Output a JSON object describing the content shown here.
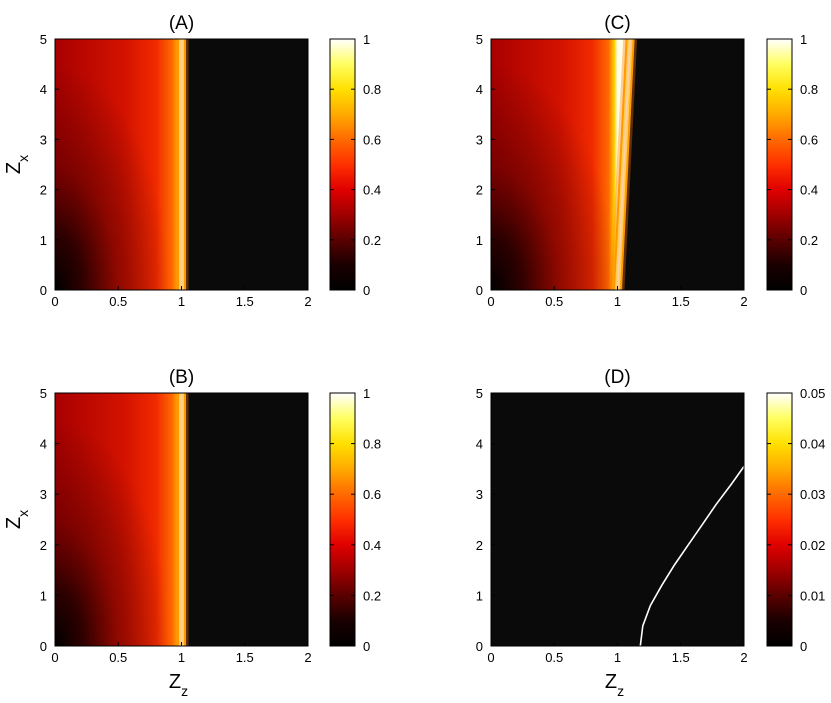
{
  "colormap": [
    "#000000",
    "#1a0000",
    "#5a0000",
    "#a00000",
    "#e00000",
    "#ff3000",
    "#ff6a00",
    "#ffaa00",
    "#ffe000",
    "#ffff60",
    "#ffffff"
  ],
  "chart_data": [
    {
      "type": "heatmap",
      "title": "(A)",
      "xlabel": "",
      "ylabel": "Z_x",
      "xlim": [
        0,
        2
      ],
      "ylim": [
        0,
        5
      ],
      "x_ticks": [
        "0",
        "0.5",
        "1",
        "1.5",
        "2"
      ],
      "y_ticks": [
        "0",
        "1",
        "2",
        "3",
        "4",
        "5"
      ],
      "colorbar": {
        "range": [
          0,
          1
        ],
        "ticks": [
          "0",
          "0.2",
          "0.4",
          "0.6",
          "0.8",
          "1"
        ]
      },
      "boundary": [
        [
          1.0,
          0
        ],
        [
          1.0,
          5
        ]
      ],
      "field": "value rises from 0 near Z_z=0, Z_x=0 to about 0.4 across the region Z_z<1, peaks at 1 along the boundary, and is 0 for Z_z>1"
    },
    {
      "type": "heatmap",
      "title": "(B)",
      "xlabel": "Z_z",
      "ylabel": "Z_x",
      "xlim": [
        0,
        2
      ],
      "ylim": [
        0,
        5
      ],
      "x_ticks": [
        "0",
        "0.5",
        "1",
        "1.5",
        "2"
      ],
      "y_ticks": [
        "0",
        "1",
        "2",
        "3",
        "4",
        "5"
      ],
      "colorbar": {
        "range": [
          0,
          1
        ],
        "ticks": [
          "0",
          "0.2",
          "0.4",
          "0.6",
          "0.8",
          "1"
        ]
      },
      "boundary": [
        [
          1.0,
          0
        ],
        [
          1.0,
          5
        ]
      ],
      "field": "value rises from 0 near Z_z=0, Z_x=0 to about 0.4 across the region Z_z<1, peaks at 1 along the boundary, and is 0 for Z_z>1"
    },
    {
      "type": "heatmap",
      "title": "(C)",
      "xlabel": "",
      "ylabel": "",
      "xlim": [
        0,
        2
      ],
      "ylim": [
        0,
        5
      ],
      "x_ticks": [
        "0",
        "0.5",
        "1",
        "1.5",
        "2"
      ],
      "y_ticks": [
        "0",
        "1",
        "2",
        "3",
        "4",
        "5"
      ],
      "colorbar": {
        "range": [
          0,
          1
        ],
        "ticks": [
          "0",
          "0.2",
          "0.4",
          "0.6",
          "0.8",
          "1"
        ]
      },
      "boundary": [
        [
          1.0,
          0
        ],
        [
          1.02,
          1
        ],
        [
          1.04,
          2
        ],
        [
          1.06,
          3
        ],
        [
          1.08,
          4
        ],
        [
          1.1,
          5
        ]
      ],
      "field": "same pattern as (A) with a boundary that tilts to Z_z≈1.1 at Z_x=5"
    },
    {
      "type": "heatmap",
      "title": "(D)",
      "xlabel": "Z_z",
      "ylabel": "",
      "xlim": [
        0,
        2
      ],
      "ylim": [
        0,
        5
      ],
      "x_ticks": [
        "0",
        "0.5",
        "1",
        "1.5",
        "2"
      ],
      "y_ticks": [
        "0",
        "1",
        "2",
        "3",
        "4",
        "5"
      ],
      "colorbar": {
        "range": [
          0,
          0.05
        ],
        "ticks": [
          "0",
          "0.01",
          "0.02",
          "0.03",
          "0.04",
          "0.05"
        ]
      },
      "curve": [
        [
          1.18,
          0
        ],
        [
          1.2,
          0.4
        ],
        [
          1.26,
          0.8
        ],
        [
          1.35,
          1.2
        ],
        [
          1.45,
          1.6
        ],
        [
          1.56,
          2.0
        ],
        [
          1.67,
          2.4
        ],
        [
          1.78,
          2.8
        ],
        [
          1.9,
          3.2
        ],
        [
          2.0,
          3.55
        ]
      ],
      "field": "value is 0 everywhere except a thin bright line along the curve"
    }
  ]
}
